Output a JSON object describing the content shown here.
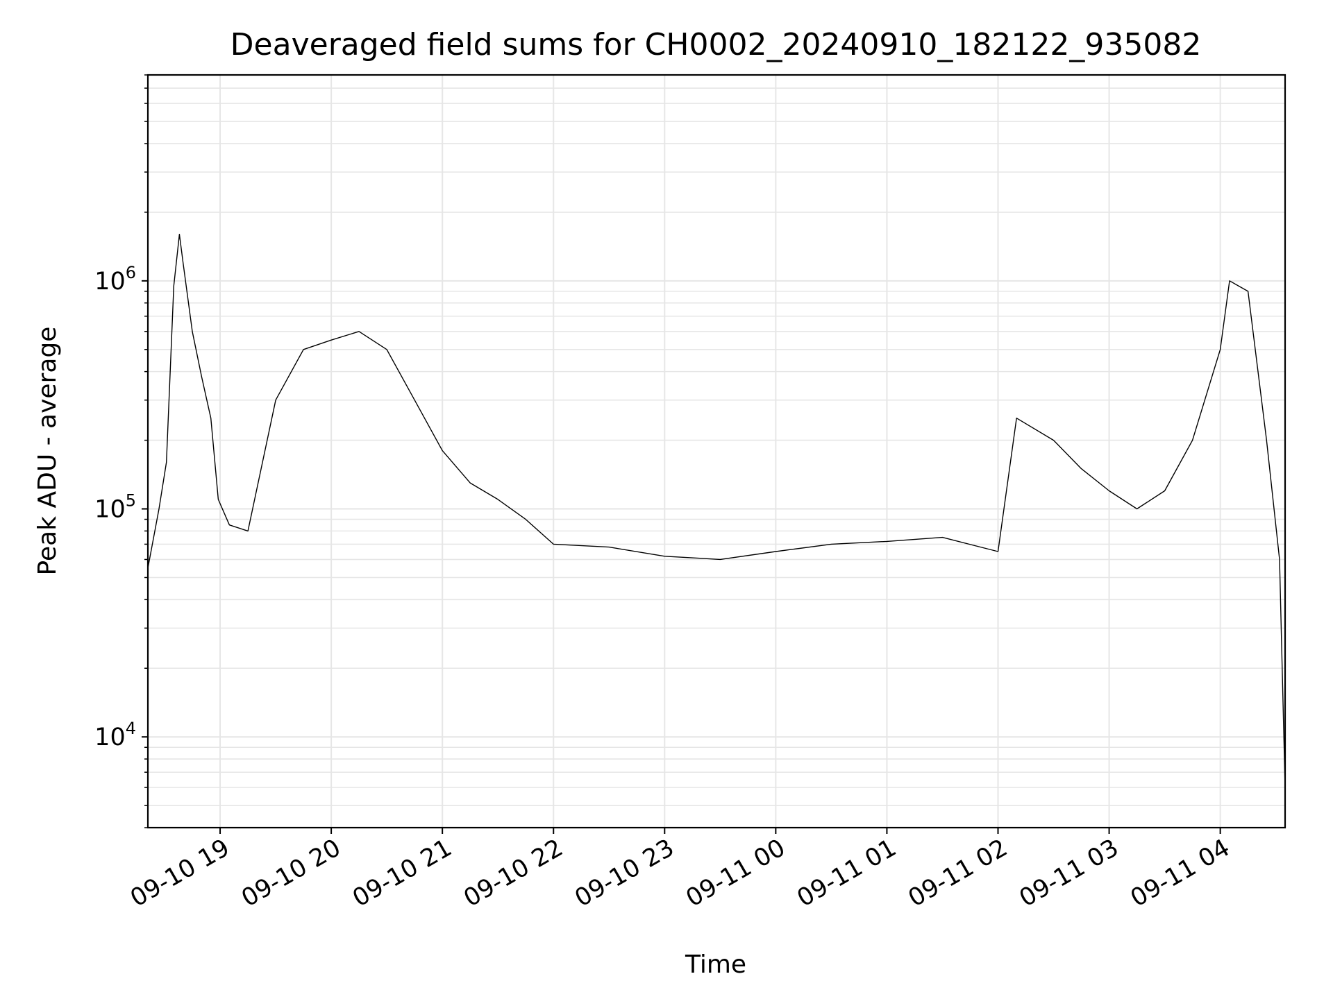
{
  "chart_data": {
    "type": "line",
    "title": "Deaveraged field sums for CH0002_20240910_182122_935082",
    "xlabel": "Time",
    "ylabel": "Peak ADU - average",
    "yscale": "log",
    "ylim": [
      4000,
      8000000
    ],
    "xlim": [
      "2024-09-10 18:21",
      "2024-09-11 04:35"
    ],
    "grid": true,
    "line_color": "#000000",
    "grid_color": "#e6e6e6",
    "x_ticks": [
      {
        "label": "09-10 19",
        "t": "2024-09-10 19:00"
      },
      {
        "label": "09-10 20",
        "t": "2024-09-10 20:00"
      },
      {
        "label": "09-10 21",
        "t": "2024-09-10 21:00"
      },
      {
        "label": "09-10 22",
        "t": "2024-09-10 22:00"
      },
      {
        "label": "09-10 23",
        "t": "2024-09-10 23:00"
      },
      {
        "label": "09-11 00",
        "t": "2024-09-11 00:00"
      },
      {
        "label": "09-11 01",
        "t": "2024-09-11 01:00"
      },
      {
        "label": "09-11 02",
        "t": "2024-09-11 02:00"
      },
      {
        "label": "09-11 03",
        "t": "2024-09-11 03:00"
      },
      {
        "label": "09-11 04",
        "t": "2024-09-11 04:00"
      }
    ],
    "y_ticks": [
      {
        "base": "10",
        "exp": "4",
        "value": 10000
      },
      {
        "base": "10",
        "exp": "5",
        "value": 100000
      },
      {
        "base": "10",
        "exp": "6",
        "value": 1000000
      }
    ],
    "series": [
      {
        "x": [
          "2024-09-10 18:21",
          "2024-09-10 18:27",
          "2024-09-10 18:31",
          "2024-09-10 18:35",
          "2024-09-10 18:38",
          "2024-09-10 18:40",
          "2024-09-10 18:45",
          "2024-09-10 18:50",
          "2024-09-10 18:55",
          "2024-09-10 18:59",
          "2024-09-10 19:05",
          "2024-09-10 19:15",
          "2024-09-10 19:30",
          "2024-09-10 19:45",
          "2024-09-10 20:00",
          "2024-09-10 20:15",
          "2024-09-10 20:30",
          "2024-09-10 20:45",
          "2024-09-10 21:00",
          "2024-09-10 21:15",
          "2024-09-10 21:30",
          "2024-09-10 21:45",
          "2024-09-10 22:00",
          "2024-09-10 22:30",
          "2024-09-10 23:00",
          "2024-09-10 23:30",
          "2024-09-11 00:00",
          "2024-09-11 00:30",
          "2024-09-11 01:00",
          "2024-09-11 01:30",
          "2024-09-11 02:00",
          "2024-09-11 02:10",
          "2024-09-11 02:30",
          "2024-09-11 02:45",
          "2024-09-11 03:00",
          "2024-09-11 03:15",
          "2024-09-11 03:30",
          "2024-09-11 03:45",
          "2024-09-11 04:00",
          "2024-09-11 04:05",
          "2024-09-11 04:15",
          "2024-09-11 04:25",
          "2024-09-11 04:32",
          "2024-09-11 04:35"
        ],
        "y": [
          55000,
          100000,
          160000,
          950000,
          1600000,
          1200000,
          600000,
          380000,
          250000,
          110000,
          85000,
          80000,
          300000,
          500000,
          550000,
          600000,
          500000,
          300000,
          180000,
          130000,
          110000,
          90000,
          70000,
          68000,
          62000,
          60000,
          65000,
          70000,
          72000,
          75000,
          65000,
          250000,
          200000,
          150000,
          120000,
          100000,
          120000,
          200000,
          500000,
          1000000,
          900000,
          200000,
          60000,
          6000
        ]
      }
    ]
  }
}
